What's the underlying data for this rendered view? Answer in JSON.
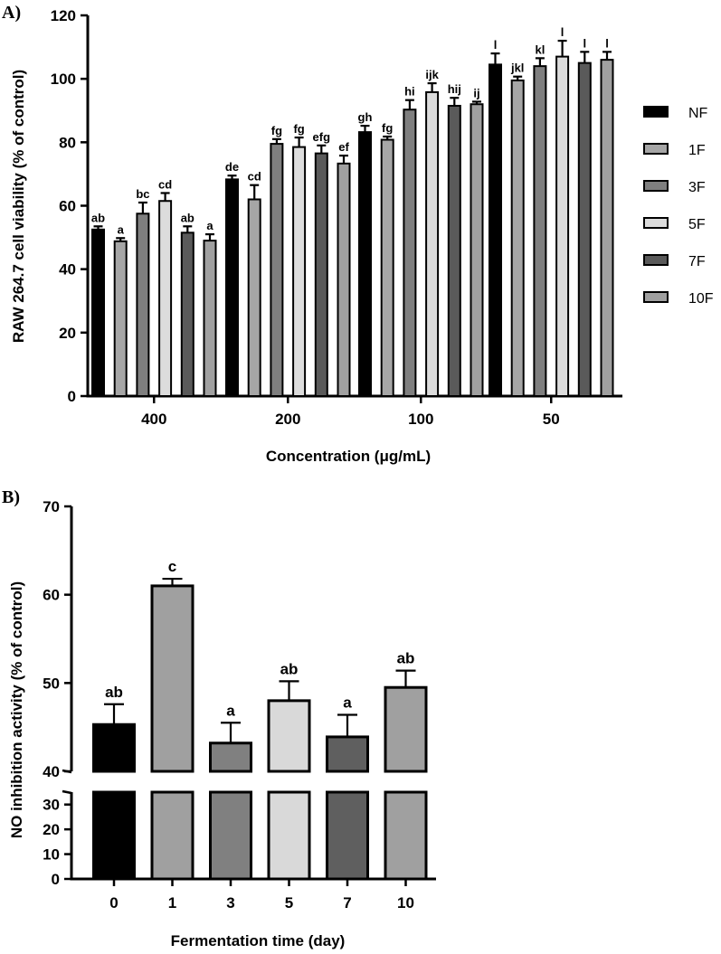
{
  "panel_a": {
    "panel_label": "A)",
    "chart_data": {
      "type": "bar",
      "title": "",
      "xlabel": "Concentration (μg/mL)",
      "ylabel": "RAW 264.7 cell viability (% of control)",
      "ylim": [
        0,
        120
      ],
      "yticks": [
        "0",
        "20",
        "40",
        "60",
        "80",
        "100",
        "120"
      ],
      "categories": [
        "400",
        "200",
        "100",
        "50"
      ],
      "series": [
        {
          "name": "NF",
          "color": "#000000",
          "values": [
            52.5,
            68.3,
            83.2,
            104.5
          ],
          "errors": [
            1.0,
            1.2,
            2.0,
            3.5
          ],
          "letters": [
            "ab",
            "de",
            "gh",
            "l"
          ]
        },
        {
          "name": "1F",
          "color": "#a6a6a6",
          "values": [
            48.8,
            62.0,
            80.8,
            99.5
          ],
          "errors": [
            1.0,
            4.5,
            1.0,
            1.2
          ],
          "letters": [
            "a",
            "cd",
            "fg",
            "jkl"
          ]
        },
        {
          "name": "3F",
          "color": "#7f7f7f",
          "values": [
            57.5,
            79.5,
            90.3,
            104.0
          ],
          "errors": [
            3.5,
            1.5,
            3.0,
            2.5
          ],
          "letters": [
            "bc",
            "fg",
            "hi",
            "kl"
          ]
        },
        {
          "name": "5F",
          "color": "#dcdcdc",
          "values": [
            61.5,
            78.5,
            95.8,
            107.0
          ],
          "errors": [
            2.5,
            3.0,
            2.8,
            5.0
          ],
          "letters": [
            "cd",
            "fg",
            "ijk",
            "l"
          ]
        },
        {
          "name": "7F",
          "color": "#5a5a5a",
          "values": [
            51.5,
            76.5,
            91.5,
            105.0
          ],
          "errors": [
            2.0,
            2.5,
            2.5,
            3.5
          ],
          "letters": [
            "ab",
            "efg",
            "hij",
            "l"
          ]
        },
        {
          "name": "10F",
          "color": "#a0a0a0",
          "values": [
            49.0,
            73.3,
            92.0,
            106.0
          ],
          "errors": [
            2.0,
            2.5,
            0.8,
            2.5
          ],
          "letters": [
            "a",
            "ef",
            "ij",
            "l"
          ]
        }
      ]
    }
  },
  "panel_b": {
    "panel_label": "B)",
    "chart_data": {
      "type": "bar",
      "title": "",
      "xlabel": "Fermentation time (day)",
      "ylabel": "NO inhibition activity  (% of control)",
      "axis_break": {
        "lower_range": [
          0,
          35
        ],
        "upper_range": [
          40,
          70
        ]
      },
      "yticks_upper": [
        "40",
        "50",
        "60",
        "70"
      ],
      "yticks_lower": [
        "0",
        "10",
        "20",
        "30"
      ],
      "categories": [
        "0",
        "1",
        "3",
        "5",
        "7",
        "10"
      ],
      "values": [
        45.3,
        61.0,
        43.2,
        48.0,
        43.9,
        49.5
      ],
      "errors": [
        2.3,
        0.8,
        2.3,
        2.2,
        2.5,
        1.9
      ],
      "letters": [
        "ab",
        "c",
        "a",
        "ab",
        "a",
        "ab"
      ],
      "colors": [
        "#000000",
        "#a0a0a0",
        "#808080",
        "#d9d9d9",
        "#5f5f5f",
        "#a0a0a0"
      ]
    }
  }
}
